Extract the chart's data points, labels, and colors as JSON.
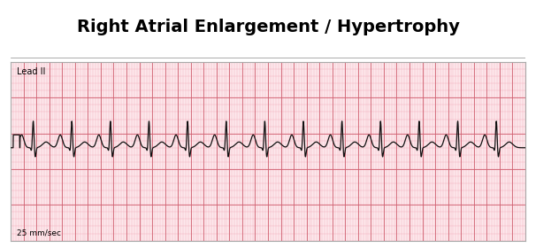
{
  "title": "Right Atrial Enlargement / Hypertrophy",
  "title_fontsize": 14,
  "title_fontweight": "bold",
  "lead_label": "Lead II",
  "speed_label": "25 mm/sec",
  "grid_minor_color": "#F0A0B0",
  "grid_major_color": "#D06070",
  "ecg_color": "#111111",
  "border_color": "#aaaaaa",
  "paper_bg": "#FDE8EC",
  "ecg_linewidth": 0.9,
  "sample_rate": 500,
  "duration": 8,
  "heart_rate": 100,
  "p_amplitude": 0.18,
  "qrs_amplitude": 0.38,
  "t_amplitude": 0.08,
  "baseline": 0.3,
  "y_min": -1.0,
  "y_max": 1.5
}
